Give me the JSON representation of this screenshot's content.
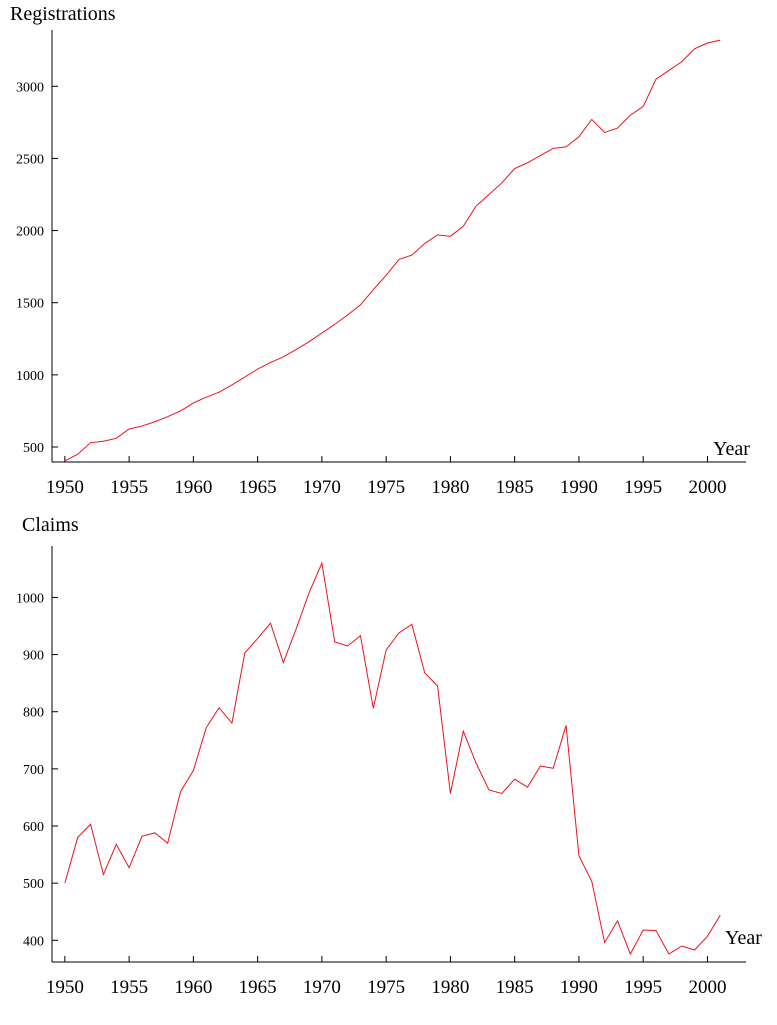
{
  "chart_data": [
    {
      "type": "line",
      "ylabel": "Registrations",
      "xlabel": "Year",
      "color": "#e8141e",
      "x": [
        1950,
        1951,
        1952,
        1953,
        1954,
        1955,
        1956,
        1957,
        1958,
        1959,
        1960,
        1961,
        1962,
        1963,
        1964,
        1965,
        1966,
        1967,
        1968,
        1969,
        1970,
        1971,
        1972,
        1973,
        1974,
        1975,
        1976,
        1977,
        1978,
        1979,
        1980,
        1981,
        1982,
        1983,
        1984,
        1985,
        1986,
        1987,
        1988,
        1989,
        1990,
        1991,
        1992,
        1993,
        1994,
        1995,
        1996,
        1997,
        1998,
        1999,
        2000,
        2001
      ],
      "values": [
        403,
        450,
        530,
        540,
        560,
        625,
        645,
        675,
        710,
        750,
        805,
        845,
        880,
        930,
        985,
        1040,
        1085,
        1125,
        1175,
        1230,
        1290,
        1350,
        1415,
        1485,
        1590,
        1690,
        1800,
        1830,
        1910,
        1970,
        1960,
        2030,
        2170,
        2250,
        2330,
        2430,
        2470,
        2520,
        2570,
        2580,
        2650,
        2770,
        2680,
        2710,
        2800,
        2860,
        3050,
        3110,
        3170,
        3260,
        3300,
        3320
      ],
      "xlim": [
        1949,
        2003
      ],
      "xticks": [
        1950,
        1955,
        1960,
        1965,
        1970,
        1975,
        1980,
        1985,
        1990,
        1995,
        2000
      ],
      "ylim": [
        396,
        3390
      ],
      "yticks": [
        500,
        1000,
        1500,
        2000,
        2500,
        3000
      ]
    },
    {
      "type": "line",
      "ylabel": "Claims",
      "xlabel": "Year",
      "color": "#e8141e",
      "x": [
        1950,
        1951,
        1952,
        1953,
        1954,
        1955,
        1956,
        1957,
        1958,
        1959,
        1960,
        1961,
        1962,
        1963,
        1964,
        1965,
        1966,
        1967,
        1968,
        1969,
        1970,
        1971,
        1972,
        1973,
        1974,
        1975,
        1976,
        1977,
        1978,
        1979,
        1980,
        1981,
        1982,
        1983,
        1984,
        1985,
        1986,
        1987,
        1988,
        1989,
        1990,
        1991,
        1992,
        1993,
        1994,
        1995,
        1996,
        1997,
        1998,
        1999,
        2000,
        2001
      ],
      "values": [
        500,
        580,
        603,
        515,
        568,
        527,
        582,
        588,
        570,
        660,
        697,
        772,
        807,
        780,
        903,
        928,
        955,
        886,
        945,
        1008,
        1060,
        922,
        915,
        933,
        806,
        908,
        938,
        953,
        868,
        845,
        657,
        766,
        710,
        663,
        657,
        682,
        668,
        705,
        701,
        776,
        548,
        503,
        396,
        434,
        376,
        418,
        417,
        376,
        390,
        383,
        407,
        444
      ],
      "xlim": [
        1949,
        2003
      ],
      "xticks": [
        1950,
        1955,
        1960,
        1965,
        1970,
        1975,
        1980,
        1985,
        1990,
        1995,
        2000
      ],
      "ylim": [
        362,
        1090
      ],
      "yticks": [
        400,
        500,
        600,
        700,
        800,
        900,
        1000
      ]
    }
  ]
}
